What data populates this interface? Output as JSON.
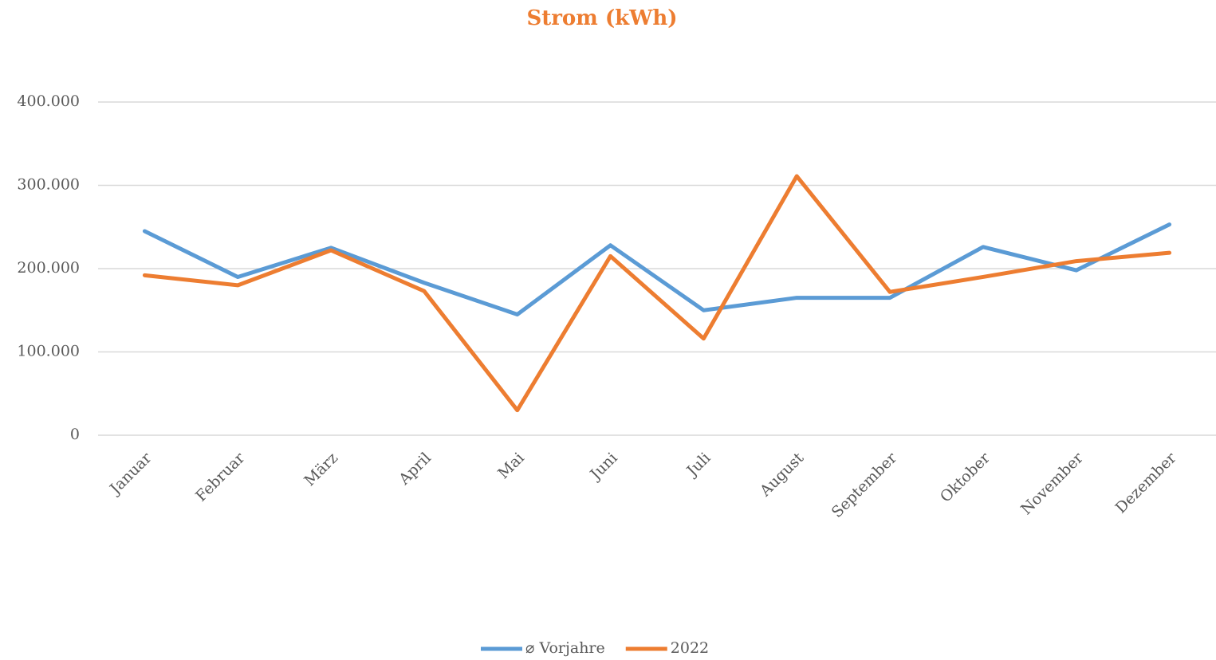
{
  "chart_data": {
    "type": "line",
    "title": "Strom (kWh)",
    "categories": [
      "Januar",
      "Februar",
      "März",
      "April",
      "Mai",
      "Juni",
      "Juli",
      "August",
      "September",
      "Oktober",
      "November",
      "Dezember"
    ],
    "series": [
      {
        "name": "⌀ Vorjahre",
        "color": "#5b9bd5",
        "values": [
          245000,
          190000,
          225000,
          183000,
          145000,
          228000,
          150000,
          165000,
          165000,
          226000,
          198000,
          253000
        ]
      },
      {
        "name": "2022",
        "color": "#ed7d31",
        "values": [
          192000,
          180000,
          222000,
          173000,
          30000,
          215000,
          116000,
          311000,
          172000,
          190000,
          209000,
          219000
        ]
      }
    ],
    "ylim": [
      0,
      400000
    ],
    "yticks": [
      0,
      {
        "value": 100000,
        "label": "100.000"
      },
      {
        "value": 200000,
        "label": "200.000"
      },
      {
        "value": 300000,
        "label": "300.000"
      },
      {
        "value": 400000,
        "label": "400.000"
      }
    ],
    "grid": true,
    "legend": "bottom"
  }
}
